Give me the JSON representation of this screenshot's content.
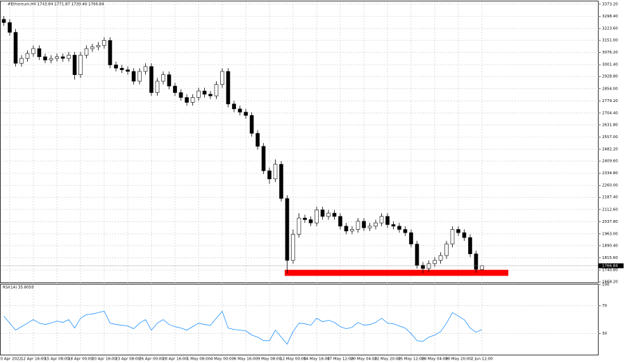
{
  "chart_data": [
    {
      "type": "candlestick",
      "title": "#Ethereum,H4  1743.84 1771.87 1739.46 1766.84",
      "categories": [
        null,
        "10 Apr 2022",
        null,
        null,
        null,
        "12 Apr 16:00",
        null,
        null,
        null,
        "15 Apr 08:00",
        null,
        null,
        null,
        "18 Apr 00:00",
        null,
        null,
        null,
        "20 Apr 16:00",
        null,
        null,
        null,
        "23 Apr 08:00",
        null,
        null,
        null,
        "26 Apr 00:00",
        null,
        null,
        null,
        "28 Apr 16:00",
        null,
        null,
        null,
        "1 May 08:00",
        null,
        null,
        null,
        "4 May 00:00",
        null,
        null,
        null,
        "6 May 16:00",
        null,
        null,
        null,
        "9 May 08:00",
        null,
        null,
        null,
        "12 May 00:00",
        null,
        null,
        null,
        "14 May 16:00",
        null,
        null,
        null,
        "17 May 12:00",
        null,
        null,
        null,
        "20 May 04:00",
        null,
        null,
        null,
        "22 May 20:00",
        null,
        null,
        null,
        "25 May 12:00",
        null,
        null,
        null,
        "28 May 04:00",
        null,
        null,
        null,
        "30 May 20:00",
        null,
        null,
        null,
        "2 Jun 12:00"
      ],
      "open": [
        3280,
        3260,
        3200,
        3010,
        3040,
        3070,
        3100,
        3050,
        3030,
        3040,
        3050,
        3040,
        3060,
        2940,
        3060,
        3100,
        3110,
        3120,
        3150,
        3000,
        2980,
        2970,
        2960,
        2900,
        2960,
        2990,
        2830,
        2900,
        2940,
        2870,
        2830,
        2800,
        2770,
        2800,
        2840,
        2820,
        2810,
        2880,
        2960,
        2760,
        2730,
        2710,
        2690,
        2580,
        2500,
        2350,
        2300,
        2390,
        2180,
        1800,
        1960,
        2060,
        2050,
        2030,
        2110,
        2070,
        2090,
        2070,
        2010,
        1980,
        1990,
        2040,
        2000,
        2010,
        2030,
        2070,
        2020,
        2010,
        1990,
        1970,
        1900,
        1770,
        1750,
        1780,
        1800,
        1830,
        1900,
        1990,
        1970,
        1940,
        1840,
        1743.84
      ],
      "high": [
        3300,
        3280,
        3220,
        3060,
        3090,
        3120,
        3120,
        3070,
        3060,
        3070,
        3070,
        3080,
        3080,
        3080,
        3120,
        3130,
        3140,
        3170,
        3170,
        3020,
        3000,
        2990,
        2980,
        2980,
        3010,
        3010,
        2920,
        2960,
        2960,
        2890,
        2850,
        2820,
        2820,
        2860,
        2860,
        2840,
        2900,
        2980,
        2980,
        2780,
        2750,
        2730,
        2710,
        2600,
        2520,
        2370,
        2420,
        2410,
        2200,
        1990,
        2090,
        2080,
        2070,
        2130,
        2130,
        2110,
        2110,
        2090,
        2030,
        2010,
        2060,
        2060,
        2030,
        2050,
        2090,
        2090,
        2040,
        2030,
        2010,
        1990,
        1920,
        1790,
        1800,
        1820,
        1850,
        1920,
        2010,
        2010,
        1990,
        1960,
        1860,
        1771.87
      ],
      "low": [
        3240,
        3180,
        2990,
        2990,
        3020,
        3050,
        3030,
        3010,
        3010,
        3020,
        3020,
        3020,
        2910,
        2920,
        3040,
        3080,
        3090,
        3100,
        2980,
        2960,
        2950,
        2940,
        2880,
        2880,
        2940,
        2810,
        2810,
        2880,
        2850,
        2810,
        2780,
        2750,
        2750,
        2780,
        2800,
        2790,
        2790,
        2860,
        2740,
        2710,
        2690,
        2670,
        2560,
        2480,
        2330,
        2270,
        2280,
        2160,
        1720,
        1780,
        1940,
        2030,
        2010,
        2010,
        2050,
        2050,
        2050,
        1990,
        1960,
        1960,
        1970,
        1980,
        1980,
        1990,
        2010,
        2000,
        1990,
        1970,
        1950,
        1880,
        1750,
        1720,
        1730,
        1760,
        1780,
        1810,
        1880,
        1950,
        1920,
        1820,
        1725,
        1739.46
      ],
      "close": [
        3260,
        3200,
        3010,
        3040,
        3070,
        3100,
        3050,
        3030,
        3040,
        3050,
        3040,
        3060,
        2940,
        3060,
        3100,
        3110,
        3120,
        3150,
        3000,
        2980,
        2970,
        2960,
        2900,
        2960,
        2990,
        2830,
        2900,
        2940,
        2870,
        2830,
        2800,
        2770,
        2800,
        2840,
        2820,
        2810,
        2880,
        2960,
        2760,
        2730,
        2710,
        2690,
        2580,
        2500,
        2350,
        2300,
        2390,
        2180,
        1800,
        1960,
        2060,
        2050,
        2030,
        2110,
        2070,
        2090,
        2070,
        2010,
        1980,
        1990,
        2040,
        2000,
        2010,
        2030,
        2070,
        2020,
        2010,
        1990,
        1970,
        1900,
        1770,
        1750,
        1780,
        1800,
        1830,
        1900,
        1990,
        1970,
        1940,
        1840,
        1745,
        1766.84
      ],
      "current_price_label": "1766.84",
      "color": "#000000",
      "zone": {
        "low": 1705,
        "high": 1742,
        "color": "#ff0000"
      },
      "ylim": [
        1660,
        3390
      ],
      "yticks": [
        {
          "value": 3373.2,
          "label": "3373.20"
        },
        {
          "value": 3298.4,
          "label": "3298.40"
        },
        {
          "value": 3223.6,
          "label": "3223.60"
        },
        {
          "value": 3151.0,
          "label": "3151.00"
        },
        {
          "value": 3076.2,
          "label": "3076.20"
        },
        {
          "value": 3001.4,
          "label": "3001.40"
        },
        {
          "value": 2928.8,
          "label": "2928.80"
        },
        {
          "value": 2854.0,
          "label": "2854.00"
        },
        {
          "value": 2779.2,
          "label": "2779.20"
        },
        {
          "value": 2704.4,
          "label": "2704.40"
        },
        {
          "value": 2631.8,
          "label": "2631.80"
        },
        {
          "value": 2557.0,
          "label": "2557.00"
        },
        {
          "value": 2482.2,
          "label": "2482.20"
        },
        {
          "value": 2409.6,
          "label": "2409.60"
        },
        {
          "value": 2334.8,
          "label": "2334.80"
        },
        {
          "value": 2260.0,
          "label": "2260.00"
        },
        {
          "value": 2187.4,
          "label": "2187.40"
        },
        {
          "value": 2112.6,
          "label": "2112.60"
        },
        {
          "value": 2037.8,
          "label": "2037.80"
        },
        {
          "value": 1963.0,
          "label": "1963.00"
        },
        {
          "value": 1890.4,
          "label": "1890.40"
        },
        {
          "value": 1815.6,
          "label": "1815.60"
        },
        {
          "value": 1740.8,
          "label": "1740.80"
        },
        {
          "value": 1668.2,
          "label": "1668.20"
        }
      ],
      "grid": true
    },
    {
      "type": "line",
      "title": "RSI(14) 35.8059",
      "color": "#1e90ff",
      "values": [
        55,
        45,
        35,
        40,
        45,
        50,
        45,
        43,
        45,
        48,
        46,
        50,
        38,
        52,
        57,
        58,
        60,
        62,
        45,
        43,
        42,
        41,
        37,
        45,
        50,
        35,
        45,
        50,
        43,
        40,
        38,
        35,
        40,
        45,
        43,
        42,
        52,
        62,
        38,
        36,
        35,
        34,
        28,
        25,
        20,
        20,
        35,
        25,
        15,
        33,
        45,
        44,
        42,
        52,
        47,
        49,
        46,
        40,
        37,
        39,
        46,
        42,
        43,
        46,
        52,
        45,
        44,
        41,
        38,
        30,
        20,
        19,
        25,
        28,
        33,
        45,
        60,
        55,
        50,
        38,
        32,
        35.8059
      ],
      "ylim": [
        0,
        100
      ],
      "yticks": [
        30,
        70,
        100
      ]
    }
  ]
}
